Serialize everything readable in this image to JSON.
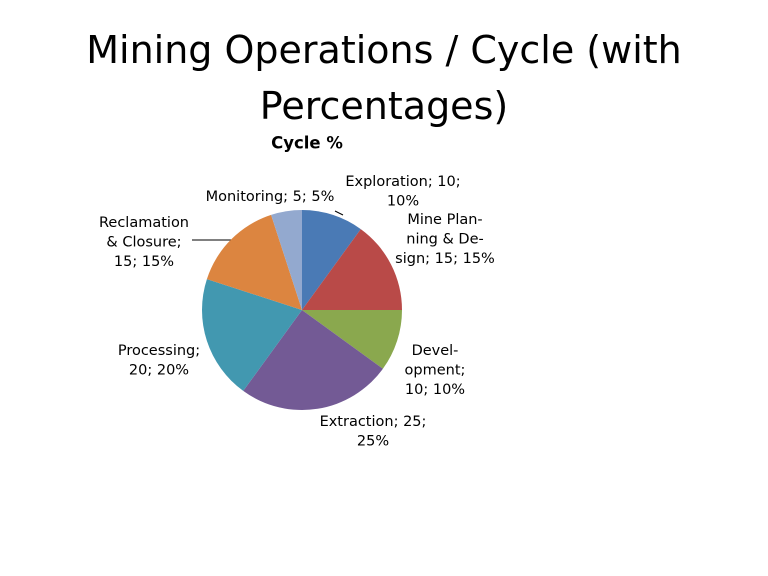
{
  "slide_title": "Mining Operations / Cycle (with Percentages)",
  "chart_data": {
    "type": "pie",
    "title": "Cycle %",
    "values": [
      10,
      15,
      10,
      25,
      20,
      15,
      5
    ],
    "value_labels": [
      [
        "Exploration; 10;",
        "10%"
      ],
      [
        "Mine Plan-",
        "ning & De-",
        "sign; 15; 15%"
      ],
      [
        "Devel-",
        "opment;",
        "10; 10%"
      ],
      [
        "Extraction; 25;",
        "25%"
      ],
      [
        "Processing;",
        "20; 20%"
      ],
      [
        "Reclamation",
        "& Closure;",
        "15; 15%"
      ],
      [
        "Monitoring; 5; 5%"
      ]
    ],
    "colors": [
      "#4a7ab5",
      "#b94a48",
      "#8aa84e",
      "#735a95",
      "#4298b0",
      "#dc8540",
      "#93a9cf"
    ]
  }
}
